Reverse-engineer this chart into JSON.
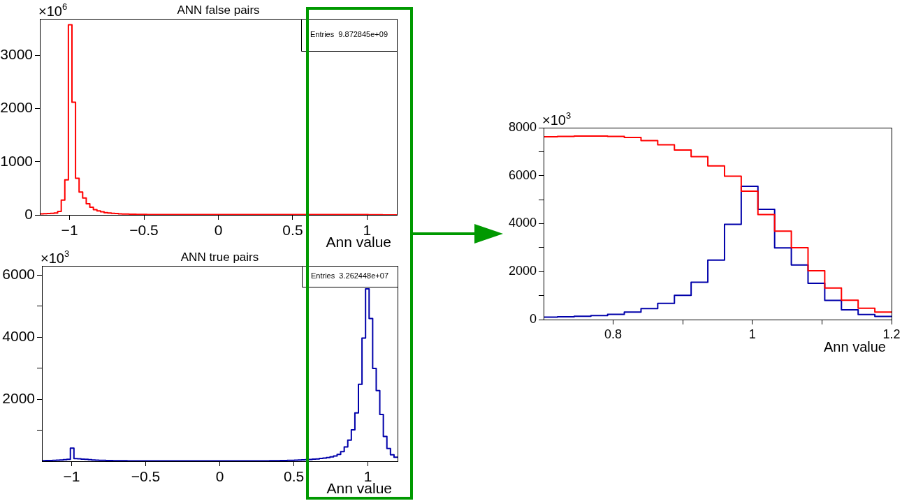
{
  "chart_data": [
    {
      "type": "histogram",
      "title": "ANN false pairs",
      "xlabel": "Ann value",
      "ylabel": "×10$^{6}$",
      "annotations": [
        "Entries  9.872845e+09"
      ],
      "color": "#ff0000",
      "bins": [
        -1.2,
        -1.176,
        -1.152,
        -1.128,
        -1.104,
        -1.08,
        -1.056,
        -1.032,
        -1.008,
        -0.984,
        -0.96,
        -0.936,
        -0.912,
        -0.888,
        -0.864,
        -0.84,
        -0.816,
        -0.792,
        -0.768,
        -0.744,
        -0.72,
        -0.696,
        -0.672,
        -0.648,
        -0.624,
        -0.6,
        -0.576,
        -0.552,
        -0.528,
        -0.504,
        -0.48,
        -0.456,
        -0.432,
        -0.408,
        -0.384,
        -0.36,
        -0.336,
        -0.312,
        -0.288,
        -0.264,
        -0.24,
        -0.216,
        -0.192,
        -0.168,
        -0.144,
        -0.12,
        -0.096,
        -0.072,
        -0.048,
        -0.024,
        0,
        0.024,
        0.048,
        0.072,
        0.096,
        0.12,
        0.144,
        0.168,
        0.192,
        0.216,
        0.24,
        0.264,
        0.288,
        0.312,
        0.336,
        0.36,
        0.384,
        0.408,
        0.432,
        0.456,
        0.48,
        0.504,
        0.528,
        0.552,
        0.576,
        0.6,
        0.624,
        0.648,
        0.672,
        0.696,
        0.72,
        0.744,
        0.768,
        0.792,
        0.816,
        0.84,
        0.864,
        0.888,
        0.912,
        0.936,
        0.96,
        0.984,
        1.008,
        1.032,
        1.056,
        1.08,
        1.104,
        1.128,
        1.152,
        1.176,
        1.2
      ],
      "values": [
        20,
        22,
        25,
        28,
        35,
        66,
        280,
        660,
        3580,
        2120,
        690,
        430,
        320,
        210,
        146,
        100,
        75,
        58,
        44,
        36,
        30,
        25,
        21,
        18,
        16,
        14,
        12,
        11,
        10,
        9,
        8,
        8,
        7,
        7,
        7,
        6,
        6,
        6,
        6,
        6,
        6,
        6,
        6,
        6,
        6,
        6,
        6,
        6,
        6,
        6,
        6,
        6,
        6,
        6,
        6,
        6,
        6,
        6,
        6,
        6,
        6,
        6,
        6,
        6,
        6,
        6.5,
        6.5,
        6.5,
        6.5,
        7,
        7,
        7,
        7,
        7,
        7,
        7.5,
        7.5,
        7.5,
        7.5,
        7.62,
        7.64,
        7.65,
        7.65,
        7.64,
        7.59,
        7.46,
        7.29,
        7.07,
        6.79,
        6.41,
        5.98,
        5.35,
        4.38,
        3.69,
        3.0,
        2.04,
        1.32,
        0.81,
        0.47,
        0.31
      ],
      "xlim": [
        -1.2,
        1.2
      ],
      "xticks": [
        {
          "value": -1,
          "label": "−1"
        },
        {
          "value": -0.5,
          "label": "−0.5"
        },
        0,
        0.5,
        1
      ],
      "ylim": [
        0,
        3690
      ],
      "yticks": [
        0,
        1000,
        2000,
        3000
      ]
    },
    {
      "type": "histogram",
      "title": "ANN true pairs",
      "xlabel": "Ann value",
      "ylabel": "×10$^{3}$",
      "annotations": [
        "Entries  3.262448e+07"
      ],
      "color": "#0000aa",
      "bins": [
        -1.2,
        -1.176,
        -1.152,
        -1.128,
        -1.104,
        -1.08,
        -1.056,
        -1.032,
        -1.008,
        -0.984,
        -0.96,
        -0.936,
        -0.912,
        -0.888,
        -0.864,
        -0.84,
        -0.816,
        -0.792,
        -0.768,
        -0.744,
        -0.72,
        -0.696,
        -0.672,
        -0.648,
        -0.624,
        -0.6,
        -0.576,
        -0.552,
        -0.528,
        -0.504,
        -0.48,
        -0.456,
        -0.432,
        -0.408,
        -0.384,
        -0.36,
        -0.336,
        -0.312,
        -0.288,
        -0.264,
        -0.24,
        -0.216,
        -0.192,
        -0.168,
        -0.144,
        -0.12,
        -0.096,
        -0.072,
        -0.048,
        -0.024,
        0,
        0.024,
        0.048,
        0.072,
        0.096,
        0.12,
        0.144,
        0.168,
        0.192,
        0.216,
        0.24,
        0.264,
        0.288,
        0.312,
        0.336,
        0.36,
        0.384,
        0.408,
        0.432,
        0.456,
        0.48,
        0.504,
        0.528,
        0.552,
        0.576,
        0.6,
        0.624,
        0.648,
        0.672,
        0.696,
        0.72,
        0.744,
        0.768,
        0.792,
        0.816,
        0.84,
        0.864,
        0.888,
        0.912,
        0.936,
        0.96,
        0.984,
        1.008,
        1.032,
        1.056,
        1.08,
        1.104,
        1.128,
        1.152,
        1.176,
        1.2
      ],
      "values": [
        17,
        20,
        24,
        28,
        32,
        40,
        50,
        60,
        420,
        87,
        80,
        70,
        60,
        50,
        42,
        36,
        30,
        26,
        22,
        20,
        18,
        17,
        16,
        15,
        14,
        13,
        12,
        12,
        11,
        11,
        10,
        10,
        10,
        10,
        10,
        10,
        10,
        10,
        10,
        10,
        10,
        10,
        10,
        10,
        10,
        10,
        10,
        10,
        10,
        10,
        10,
        10,
        10,
        10,
        10,
        10,
        10,
        10,
        10,
        10,
        11,
        12,
        13,
        14,
        15,
        17,
        19,
        21,
        24,
        27,
        30,
        34,
        38,
        43,
        50,
        57,
        65,
        75,
        88,
        100,
        120,
        140,
        170,
        220,
        310,
        460,
        680,
        1010,
        1560,
        2480,
        3970,
        5560,
        4600,
        2990,
        2280,
        1510,
        800,
        410,
        210,
        130
      ],
      "xlim": [
        -1.2,
        1.2
      ],
      "xticks": [
        {
          "value": -1,
          "label": "−1"
        },
        {
          "value": -0.5,
          "label": "−0.5"
        },
        0,
        0.5,
        1
      ],
      "ylim": [
        0,
        6300
      ],
      "yticks": [
        {
          "value": 1000,
          "label": null
        },
        2000,
        {
          "value": 3000,
          "label": null
        },
        4000,
        {
          "value": 5000,
          "label": null
        },
        6000
      ]
    },
    {
      "type": "histogram",
      "xlabel": "Ann value",
      "ylabel": "×10$^{3}$",
      "bins": [
        0.7,
        0.72,
        0.744,
        0.768,
        0.792,
        0.816,
        0.84,
        0.864,
        0.888,
        0.912,
        0.936,
        0.96,
        0.984,
        1.008,
        1.032,
        1.056,
        1.08,
        1.104,
        1.128,
        1.152,
        1.176,
        1.2
      ],
      "series": [
        {
          "color": "#ff0000",
          "values": [
            7620,
            7640,
            7650,
            7650,
            7640,
            7590,
            7460,
            7290,
            7070,
            6790,
            6410,
            5980,
            5350,
            4380,
            3690,
            3000,
            2040,
            1320,
            810,
            470,
            310
          ]
        },
        {
          "color": "#0000aa",
          "values": [
            100,
            120,
            140,
            170,
            220,
            310,
            460,
            680,
            1010,
            1560,
            2480,
            3970,
            5560,
            4600,
            2990,
            2280,
            1510,
            800,
            410,
            210,
            130
          ]
        }
      ],
      "xlim": [
        0.7,
        1.2
      ],
      "xticks": [
        0.8,
        {
          "value": 0.9,
          "label": null
        },
        1,
        {
          "value": 1.1,
          "label": null
        },
        1.2
      ],
      "ylim": [
        0,
        8000
      ],
      "yticks": [
        0,
        {
          "value": 1000,
          "label": null
        },
        2000,
        {
          "value": 3000,
          "label": null
        },
        4000,
        {
          "value": 5000,
          "label": null
        },
        6000,
        {
          "value": 7000,
          "label": null
        },
        8000
      ]
    }
  ]
}
